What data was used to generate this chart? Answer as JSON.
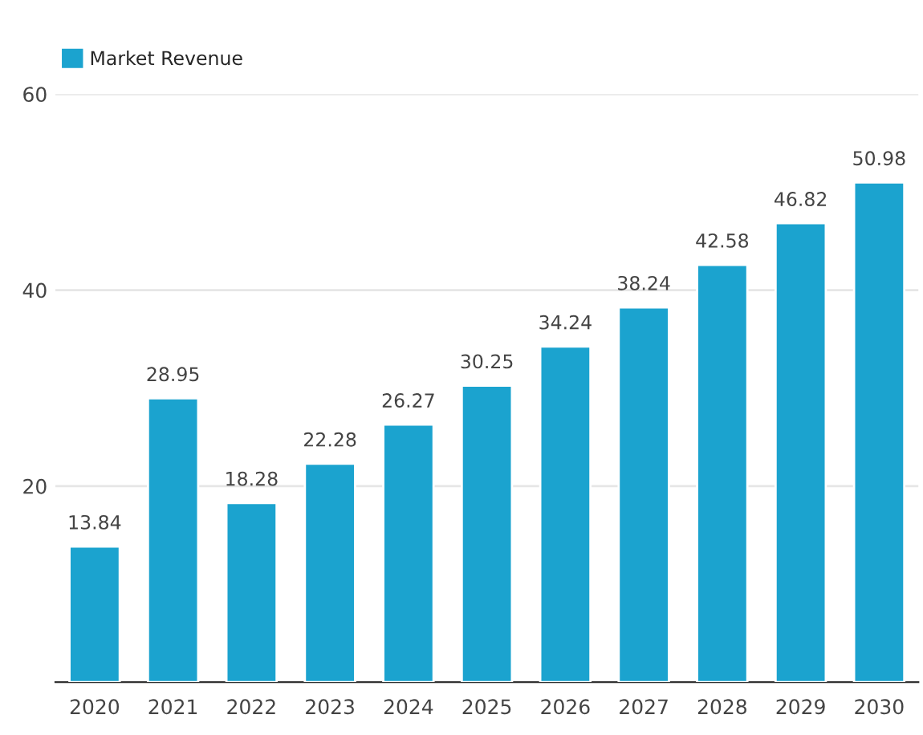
{
  "chart_data": {
    "type": "bar",
    "categories": [
      "2020",
      "2021",
      "2022",
      "2023",
      "2024",
      "2025",
      "2026",
      "2027",
      "2028",
      "2029",
      "2030"
    ],
    "series": [
      {
        "name": "Market Revenue",
        "color": "#1ba3cf",
        "values": [
          13.84,
          28.95,
          18.28,
          22.28,
          26.27,
          30.25,
          34.24,
          38.24,
          42.58,
          46.82,
          50.98
        ]
      }
    ],
    "ylim": [
      0,
      60
    ],
    "yticks": [
      20,
      40,
      60
    ],
    "grid": "y",
    "legend": "top left",
    "data_labels": true
  }
}
